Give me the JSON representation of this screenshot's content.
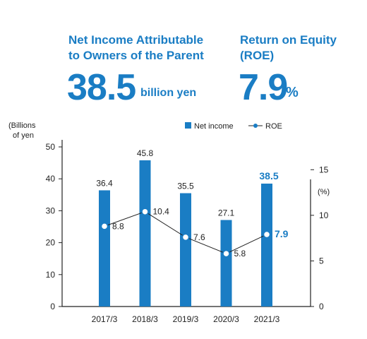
{
  "header": {
    "net_income": {
      "title_line1": "Net Income Attributable",
      "title_line2": "to Owners of the Parent",
      "value": "38.5",
      "unit": "billion yen"
    },
    "roe": {
      "title_line1": "Return on Equity",
      "title_line2": "(ROE)",
      "value": "7.9",
      "unit": "%"
    }
  },
  "colors": {
    "accent": "#1a7dc4",
    "bar": "#1a7dc4",
    "line": "#222222",
    "axis": "#222222"
  },
  "chart_data": {
    "type": "bar",
    "categories": [
      "2017/3",
      "2018/3",
      "2019/3",
      "2020/3",
      "2021/3"
    ],
    "series": [
      {
        "name": "Net income",
        "type": "bar",
        "axis": "left",
        "values": [
          36.4,
          45.8,
          35.5,
          27.1,
          38.5
        ],
        "labels": [
          "36.4",
          "45.8",
          "35.5",
          "27.1",
          "38.5"
        ]
      },
      {
        "name": "ROE",
        "type": "line",
        "axis": "right",
        "values": [
          8.8,
          10.4,
          7.6,
          5.8,
          7.9
        ],
        "labels": [
          "8.8",
          "10.4",
          "7.6",
          "5.8",
          "7.9"
        ]
      }
    ],
    "highlight_index": 4,
    "y_left": {
      "label_line1": "(Billions",
      "label_line2": "of yen",
      "range": [
        0,
        50
      ],
      "ticks": [
        0,
        10,
        20,
        30,
        40,
        50
      ],
      "tick_labels": [
        "0",
        "10",
        "20",
        "30",
        "40",
        "50"
      ]
    },
    "y_right": {
      "label": "(%)",
      "range": [
        0,
        17.5
      ],
      "ticks": [
        0,
        5,
        10,
        15
      ],
      "tick_labels": [
        "0",
        "5",
        "10",
        "15"
      ]
    },
    "legend": {
      "position": "top-right",
      "bar_label": "Net income",
      "line_label": "ROE"
    },
    "grid": false
  }
}
